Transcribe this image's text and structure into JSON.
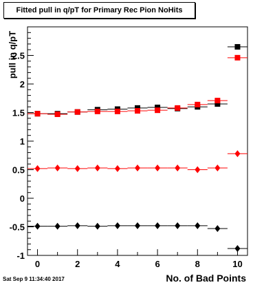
{
  "chart_data": {
    "type": "scatter",
    "title": "Fitted pull in q/pT for Primary Rec Pion NoHits",
    "xlabel": "No. of Bad Points",
    "ylabel": "pull in q/pT",
    "xlim": [
      -0.5,
      10.5
    ],
    "ylim": [
      -1,
      3
    ],
    "x_ticks": [
      0,
      2,
      4,
      6,
      8,
      10
    ],
    "y_ticks": [
      -1,
      -0.5,
      0,
      0.5,
      1,
      1.5,
      2,
      2.5
    ],
    "y_tick_labels": [
      "-1",
      "-0.5",
      "0",
      "0.5",
      "1",
      "1.5",
      "2",
      "2.5"
    ],
    "x_tick_labels": [
      "0",
      "2",
      "4",
      "6",
      "8",
      "10"
    ],
    "grid": false,
    "series": [
      {
        "color": "#000000",
        "marker": "square",
        "x": [
          0,
          1,
          2,
          3,
          4,
          5,
          6,
          7,
          8,
          9,
          10
        ],
        "y": [
          1.48,
          1.48,
          1.51,
          1.55,
          1.56,
          1.58,
          1.59,
          1.57,
          1.6,
          1.65,
          2.65
        ]
      },
      {
        "color": "#ff0000",
        "marker": "square",
        "x": [
          0,
          1,
          2,
          3,
          4,
          5,
          6,
          7,
          8,
          9,
          10
        ],
        "y": [
          1.48,
          1.47,
          1.51,
          1.52,
          1.52,
          1.53,
          1.54,
          1.58,
          1.64,
          1.71,
          2.46
        ]
      },
      {
        "color": "#ff0000",
        "marker": "diamond",
        "x": [
          0,
          1,
          2,
          3,
          4,
          5,
          6,
          7,
          8,
          9,
          10
        ],
        "y": [
          0.52,
          0.53,
          0.52,
          0.53,
          0.52,
          0.53,
          0.53,
          0.53,
          0.5,
          0.53,
          0.78
        ]
      },
      {
        "color": "#000000",
        "marker": "diamond",
        "x": [
          0,
          1,
          2,
          3,
          4,
          5,
          6,
          7,
          8,
          9,
          10
        ],
        "y": [
          -0.49,
          -0.49,
          -0.48,
          -0.49,
          -0.48,
          -0.48,
          -0.48,
          -0.48,
          -0.48,
          -0.53,
          -0.88
        ]
      }
    ]
  },
  "footer": {
    "datestamp": "Sat Sep  9 11:34:40 2017"
  }
}
